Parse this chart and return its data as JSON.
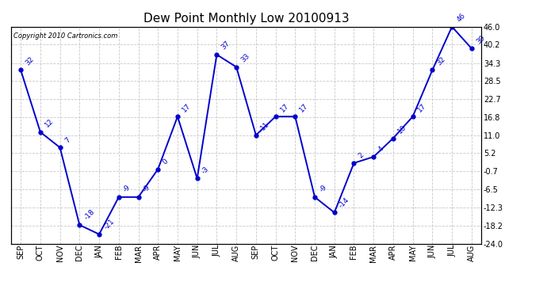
{
  "title": "Dew Point Monthly Low 20100913",
  "copyright": "Copyright 2010 Cartronics.com",
  "months": [
    "SEP",
    "OCT",
    "NOV",
    "DEC",
    "JAN",
    "FEB",
    "MAR",
    "APR",
    "MAY",
    "JUN",
    "JUL",
    "AUG",
    "SEP",
    "OCT",
    "NOV",
    "DEC",
    "JAN",
    "FEB",
    "MAR",
    "APR",
    "MAY",
    "JUN",
    "JUL",
    "AUG"
  ],
  "values": [
    32,
    12,
    7,
    -18,
    -21,
    -9,
    -9,
    0,
    17,
    -3,
    37,
    33,
    11,
    17,
    17,
    -9,
    -14,
    2,
    4,
    10,
    17,
    32,
    46,
    39
  ],
  "line_color": "#0000cc",
  "marker_size": 3.5,
  "background_color": "#ffffff",
  "grid_color": "#c8c8c8",
  "ylim_min": -24.0,
  "ylim_max": 46.0,
  "yticks": [
    46.0,
    40.2,
    34.3,
    28.5,
    22.7,
    16.8,
    11.0,
    5.2,
    -0.7,
    -6.5,
    -12.3,
    -18.2,
    -24.0
  ],
  "ytick_labels": [
    "46.0",
    "40.2",
    "34.3",
    "28.5",
    "22.7",
    "16.8",
    "11.0",
    "5.2",
    "-0.7",
    "-6.5",
    "-12.3",
    "-18.2",
    "-24.0"
  ],
  "title_fontsize": 11,
  "tick_fontsize": 7,
  "annotation_fontsize": 6.5,
  "copyright_fontsize": 6
}
